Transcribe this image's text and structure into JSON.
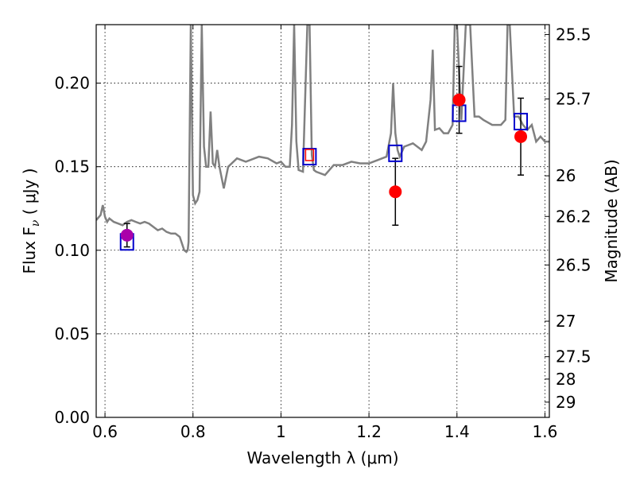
{
  "chart_data": {
    "type": "scatter",
    "xlabel": "Wavelength  λ (μm)",
    "ylabel": "Flux  F",
    "ylabel_subscript": "ν",
    "ylabel_unit": "  ( μJy )",
    "y2label": "Magnitude (AB)",
    "xlim": [
      0.58,
      1.61
    ],
    "ylim": [
      0.0,
      0.235
    ],
    "grid": true,
    "x_ticks": [
      0.6,
      0.8,
      1.0,
      1.2,
      1.4,
      1.6
    ],
    "x_tick_labels": [
      "0.6",
      "0.8",
      "1",
      "1.2",
      "1.4",
      "1.6"
    ],
    "y_ticks": [
      0.0,
      0.05,
      0.1,
      0.15,
      0.2
    ],
    "y_tick_labels": [
      "0.00",
      "0.05",
      "0.10",
      "0.15",
      "0.20"
    ],
    "mag_ticks": [
      {
        "label": "25.5",
        "mag": 25.5
      },
      {
        "label": "25.7",
        "mag": 25.7
      },
      {
        "label": "26",
        "mag": 26.0
      },
      {
        "label": "26.2",
        "mag": 26.2
      },
      {
        "label": "26.5",
        "mag": 26.5
      },
      {
        "label": "27",
        "mag": 27.0
      },
      {
        "label": "27.5",
        "mag": 27.5
      },
      {
        "label": "28",
        "mag": 28.0
      },
      {
        "label": "29",
        "mag": 29.0
      }
    ],
    "model_spectrum": {
      "name": "model spectrum",
      "color": "#808080",
      "x": [
        0.58,
        0.59,
        0.595,
        0.6,
        0.605,
        0.61,
        0.62,
        0.63,
        0.64,
        0.65,
        0.66,
        0.67,
        0.68,
        0.69,
        0.7,
        0.71,
        0.72,
        0.73,
        0.74,
        0.75,
        0.76,
        0.77,
        0.775,
        0.78,
        0.785,
        0.788,
        0.79,
        0.795,
        0.8,
        0.805,
        0.81,
        0.815,
        0.82,
        0.825,
        0.83,
        0.835,
        0.84,
        0.845,
        0.85,
        0.855,
        0.86,
        0.87,
        0.88,
        0.9,
        0.92,
        0.95,
        0.97,
        0.99,
        1.0,
        1.01,
        1.02,
        1.025,
        1.03,
        1.035,
        1.04,
        1.05,
        1.06,
        1.065,
        1.07,
        1.075,
        1.08,
        1.1,
        1.12,
        1.14,
        1.16,
        1.18,
        1.2,
        1.22,
        1.24,
        1.25,
        1.255,
        1.26,
        1.265,
        1.27,
        1.28,
        1.3,
        1.32,
        1.33,
        1.34,
        1.345,
        1.35,
        1.36,
        1.37,
        1.38,
        1.39,
        1.395,
        1.4,
        1.41,
        1.42,
        1.43,
        1.44,
        1.45,
        1.46,
        1.48,
        1.5,
        1.51,
        1.515,
        1.52,
        1.53,
        1.54,
        1.55,
        1.56,
        1.57,
        1.58,
        1.59,
        1.6,
        1.61
      ],
      "y": [
        0.118,
        0.121,
        0.127,
        0.12,
        0.117,
        0.119,
        0.117,
        0.116,
        0.115,
        0.117,
        0.118,
        0.117,
        0.116,
        0.117,
        0.116,
        0.114,
        0.112,
        0.113,
        0.111,
        0.11,
        0.11,
        0.108,
        0.104,
        0.1,
        0.099,
        0.1,
        0.105,
        0.235,
        0.133,
        0.128,
        0.13,
        0.135,
        0.235,
        0.162,
        0.15,
        0.15,
        0.183,
        0.152,
        0.15,
        0.16,
        0.15,
        0.137,
        0.15,
        0.155,
        0.153,
        0.156,
        0.155,
        0.152,
        0.153,
        0.15,
        0.15,
        0.175,
        0.235,
        0.165,
        0.148,
        0.147,
        0.235,
        0.235,
        0.157,
        0.148,
        0.147,
        0.145,
        0.151,
        0.151,
        0.153,
        0.152,
        0.152,
        0.154,
        0.156,
        0.17,
        0.2,
        0.17,
        0.16,
        0.156,
        0.162,
        0.164,
        0.16,
        0.165,
        0.19,
        0.22,
        0.172,
        0.173,
        0.17,
        0.17,
        0.175,
        0.235,
        0.235,
        0.178,
        0.235,
        0.235,
        0.18,
        0.18,
        0.178,
        0.175,
        0.175,
        0.178,
        0.235,
        0.235,
        0.18,
        0.18,
        0.175,
        0.172,
        0.175,
        0.165,
        0.168,
        0.165,
        0.165
      ]
    },
    "square_markers": [
      {
        "x": 0.65,
        "y": 0.105,
        "color": "#0000cc"
      },
      {
        "x": 1.065,
        "y": 0.156,
        "color": "#0000cc"
      },
      {
        "x": 1.26,
        "y": 0.158,
        "color": "#0000cc"
      },
      {
        "x": 1.405,
        "y": 0.182,
        "color": "#0000cc"
      },
      {
        "x": 1.545,
        "y": 0.177,
        "color": "#0000cc"
      }
    ],
    "observed_points": [
      {
        "x": 0.65,
        "y": 0.109,
        "yerr": 0.007,
        "color": "#aa00aa"
      },
      {
        "x": 1.065,
        "y": 0.157,
        "yerr": null,
        "color": "#ff0000",
        "style": "open-square"
      },
      {
        "x": 1.26,
        "y": 0.135,
        "yerr": 0.02,
        "color": "#ff0000"
      },
      {
        "x": 1.405,
        "y": 0.19,
        "yerr": 0.02,
        "color": "#ff0000"
      },
      {
        "x": 1.545,
        "y": 0.168,
        "yerr": 0.023,
        "color": "#ff0000"
      }
    ]
  }
}
